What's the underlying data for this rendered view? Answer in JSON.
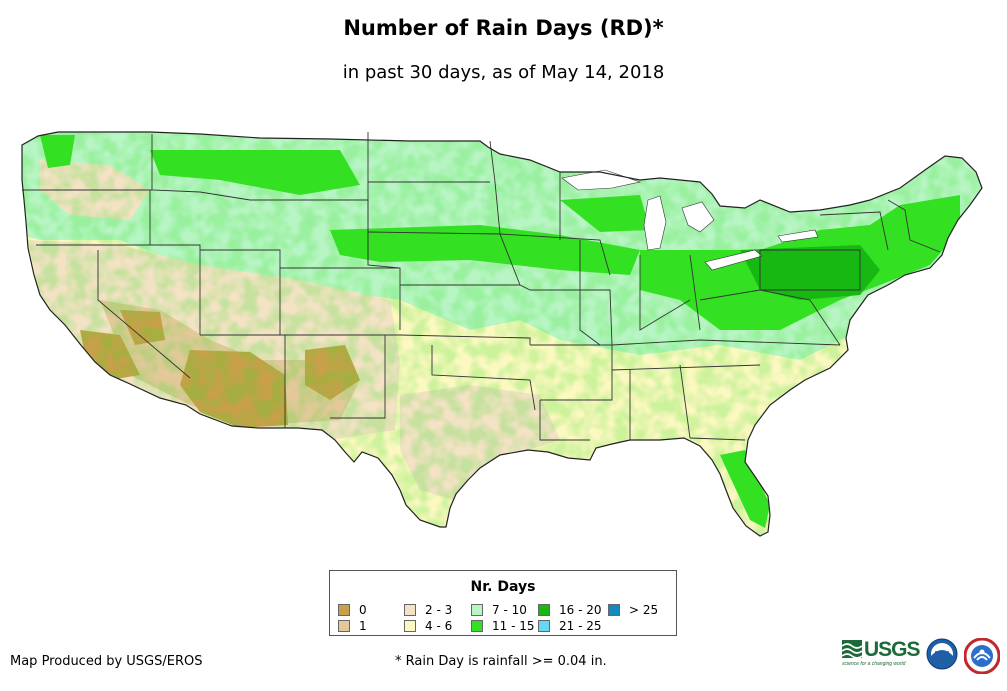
{
  "title": "Number of Rain Days (RD)*",
  "subtitle": "in past 30 days, as of May 14, 2018",
  "legend": {
    "title": "Nr. Days",
    "items": [
      {
        "label": "0",
        "color": "#c8a04a"
      },
      {
        "label": "1",
        "color": "#e3c99a"
      },
      {
        "label": "2 - 3",
        "color": "#f3e2c4"
      },
      {
        "label": "4 - 6",
        "color": "#fbf8c0"
      },
      {
        "label": "7 - 10",
        "color": "#b8f5c4"
      },
      {
        "label": "11 - 15",
        "color": "#33e022"
      },
      {
        "label": "16 - 20",
        "color": "#17b812"
      },
      {
        "label": "21 - 25",
        "color": "#66d8f0"
      },
      {
        "label": "> 25",
        "color": "#1688c0"
      }
    ]
  },
  "footer": {
    "credit": "Map Produced by USGS/EROS",
    "note": "* Rain Day is rainfall >= 0.04 in."
  },
  "logos": {
    "usgs_text": "USGS",
    "usgs_tagline": "science for a changing world"
  }
}
